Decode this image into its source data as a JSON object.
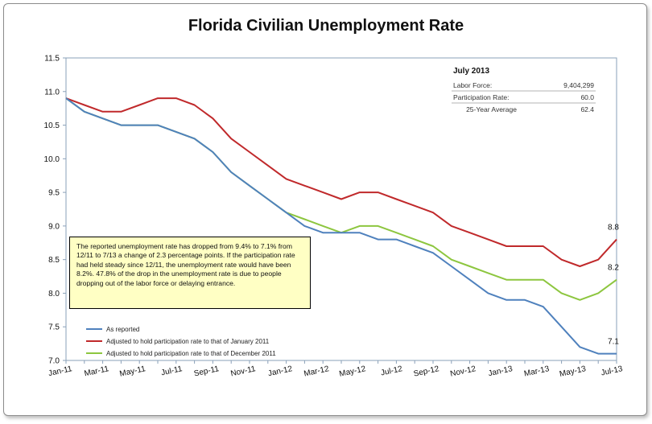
{
  "chart_data": {
    "type": "line",
    "title": "Florida Civilian Unemployment Rate",
    "xlabel": "",
    "ylabel": "",
    "ylim": [
      7.0,
      11.5
    ],
    "yticks": [
      "7.0",
      "7.5",
      "8.0",
      "8.5",
      "9.0",
      "9.5",
      "10.0",
      "10.5",
      "11.0",
      "11.5"
    ],
    "x": [
      "Jan-11",
      "Feb-11",
      "Mar-11",
      "Apr-11",
      "May-11",
      "Jun-11",
      "Jul-11",
      "Aug-11",
      "Sep-11",
      "Oct-11",
      "Nov-11",
      "Dec-11",
      "Jan-12",
      "Feb-12",
      "Mar-12",
      "Apr-12",
      "May-12",
      "Jun-12",
      "Jul-12",
      "Aug-12",
      "Sep-12",
      "Oct-12",
      "Nov-12",
      "Dec-12",
      "Jan-13",
      "Feb-13",
      "Mar-13",
      "Apr-13",
      "May-13",
      "Jun-13",
      "Jul-13"
    ],
    "x_tick_labels": [
      "Jan-11",
      "Mar-11",
      "May-11",
      "Jul-11",
      "Sep-11",
      "Nov-11",
      "Jan-12",
      "Mar-12",
      "May-12",
      "Jul-12",
      "Sep-12",
      "Nov-12",
      "Jan-13",
      "Mar-13",
      "May-13",
      "Jul-13"
    ],
    "grid": false,
    "legend_position": "bottom-left",
    "series": [
      {
        "name": "As reported",
        "color": "#4f81bd",
        "values": [
          10.9,
          10.7,
          10.6,
          10.5,
          10.5,
          10.5,
          10.4,
          10.3,
          10.1,
          9.8,
          9.6,
          9.4,
          9.2,
          9.0,
          8.9,
          8.9,
          8.9,
          8.8,
          8.8,
          8.7,
          8.6,
          8.4,
          8.2,
          8.0,
          7.9,
          7.9,
          7.8,
          7.5,
          7.2,
          7.1,
          7.1
        ],
        "end_label": "7.1"
      },
      {
        "name": "Adjusted to hold participation rate to that of January 2011",
        "color": "#c0292b",
        "values": [
          10.9,
          10.8,
          10.7,
          10.7,
          10.8,
          10.9,
          10.9,
          10.8,
          10.6,
          10.3,
          10.1,
          9.9,
          9.7,
          9.6,
          9.5,
          9.4,
          9.5,
          9.5,
          9.4,
          9.3,
          9.2,
          9.0,
          8.9,
          8.8,
          8.7,
          8.7,
          8.7,
          8.5,
          8.4,
          8.5,
          8.8
        ],
        "end_label": "8.8"
      },
      {
        "name": "Adjusted to hold participation rate to that of December 2011",
        "color": "#8dc63f",
        "values": [
          10.9,
          10.7,
          10.6,
          10.5,
          10.5,
          10.5,
          10.4,
          10.3,
          10.1,
          9.8,
          9.6,
          9.4,
          9.2,
          9.1,
          9.0,
          8.9,
          9.0,
          9.0,
          8.9,
          8.8,
          8.7,
          8.5,
          8.4,
          8.3,
          8.2,
          8.2,
          8.2,
          8.0,
          7.9,
          8.0,
          8.2
        ],
        "end_label": "8.2"
      }
    ]
  },
  "info_box": {
    "heading": "July 2013",
    "rows": [
      {
        "label": "Labor Force:",
        "value": "9,404,299"
      },
      {
        "label": "Participation Rate:",
        "value": "60.0"
      },
      {
        "label": "   25-Year Average",
        "value": "62.4"
      }
    ]
  },
  "annotation": "The reported unemployment rate has dropped from 9.4% to 7.1% from 12/11 to 7/13    a change of 2.3 percentage points.  If the participation rate had held steady since 12/11, the unemployment rate would have been 8.2%.  47.8% of the drop in the unemployment rate is due to people dropping out of the labor force or delaying entrance."
}
